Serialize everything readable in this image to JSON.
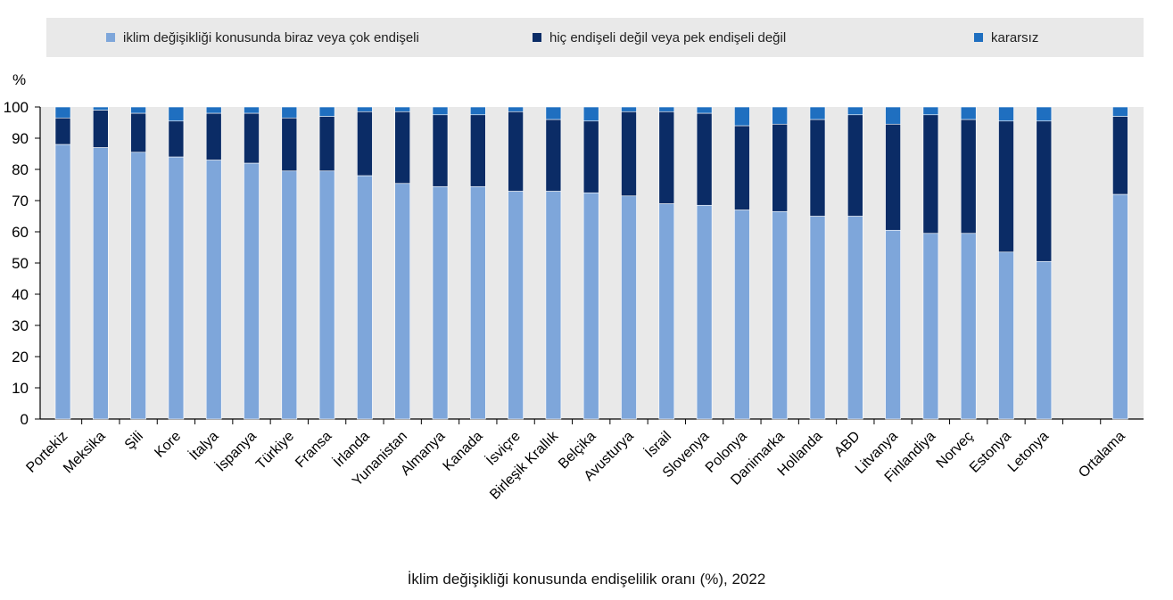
{
  "chart_data": {
    "type": "bar",
    "stacked": true,
    "caption": "İklim değişikliği konusunda endişelilik oranı (%), 2022",
    "ylabel": "%",
    "ylim": [
      0,
      100
    ],
    "yticks": [
      0,
      10,
      20,
      30,
      40,
      50,
      60,
      70,
      80,
      90,
      100
    ],
    "grid": false,
    "legend_position": "top",
    "categories": [
      "Portekiz",
      "Meksika",
      "Şili",
      "Kore",
      "İtalya",
      "İspanya",
      "Türkiye",
      "Fransa",
      "İrlanda",
      "Yunanistan",
      "Almanya",
      "Kanada",
      "İsviçre",
      "Birleşik Krallık",
      "Belçika",
      "Avusturya",
      "İsrail",
      "Slovenya",
      "Polonya",
      "Danimarka",
      "Hollanda",
      "ABD",
      "Litvanya",
      "Finlandiya",
      "Norveç",
      "Estonya",
      "Letonya",
      "Ortalama"
    ],
    "series": [
      {
        "name": "iklim değişikliği konusunda biraz veya çok endişeli",
        "color": "#7ea6da",
        "values": [
          88,
          87,
          85.5,
          84,
          83,
          82,
          79.5,
          79.5,
          78,
          75.5,
          74.5,
          74.5,
          73,
          73,
          72.5,
          71.5,
          69,
          68.5,
          67,
          66.5,
          65,
          65,
          60.5,
          59.5,
          59.5,
          53.5,
          50.5,
          72
        ]
      },
      {
        "name": "hiç endişeli değil veya pek endişeli değil",
        "color": "#0b2c66",
        "values": [
          8.5,
          12,
          12.5,
          11.5,
          15,
          16,
          17,
          17.5,
          20.5,
          23,
          23,
          23,
          25.5,
          23,
          23,
          27,
          29.5,
          29.5,
          27,
          28,
          31,
          32.5,
          34,
          38,
          36.5,
          42,
          45,
          25
        ]
      },
      {
        "name": "kararsız",
        "color": "#1f6fc0",
        "values": [
          3.5,
          1,
          2,
          4.5,
          2,
          2,
          3.5,
          3,
          1.5,
          1.5,
          2.5,
          2.5,
          1.5,
          4,
          4.5,
          1.5,
          1.5,
          2,
          6,
          5.5,
          4,
          2.5,
          5.5,
          2.5,
          4,
          4.5,
          4.5,
          3
        ]
      }
    ]
  }
}
